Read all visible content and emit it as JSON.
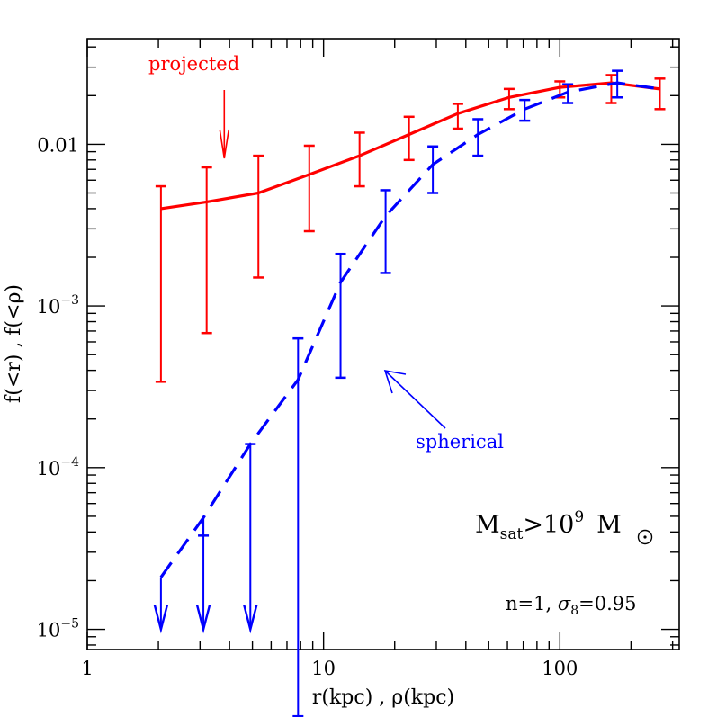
{
  "chart_data": {
    "type": "line",
    "xscale": "log",
    "yscale": "log",
    "xlim": [
      1,
      320
    ],
    "ylim": [
      7.5e-06,
      0.045
    ],
    "xlabel": "r(kpc) , ρ(kpc)",
    "ylabel": "f(<r) , f(<ρ)",
    "x_tick_labels": [
      {
        "value": 1,
        "label": "1"
      },
      {
        "value": 10,
        "label": "10"
      },
      {
        "value": 100,
        "label": "100"
      }
    ],
    "y_tick_labels": [
      {
        "value": 1e-05,
        "base": "10",
        "exp": "−5"
      },
      {
        "value": 0.0001,
        "base": "10",
        "exp": "−4"
      },
      {
        "value": 0.001,
        "base": "10",
        "exp": "−3"
      },
      {
        "value": 0.01,
        "base": "0.01",
        "exp": ""
      }
    ],
    "series": [
      {
        "name": "projected",
        "color": "#ff0000",
        "style": "solid",
        "x": [
          2.05,
          3.2,
          5.3,
          8.7,
          14.2,
          23,
          37,
          61,
          100,
          165,
          265
        ],
        "y": [
          0.004,
          0.0044,
          0.005,
          0.0065,
          0.0085,
          0.0115,
          0.0155,
          0.0195,
          0.0225,
          0.024,
          0.022
        ],
        "err_low": [
          0.00034,
          0.00068,
          0.0015,
          0.0029,
          0.0055,
          0.008,
          0.0125,
          0.0165,
          0.0195,
          0.018,
          0.0165
        ],
        "err_high": [
          0.0055,
          0.0072,
          0.0085,
          0.0098,
          0.0118,
          0.0148,
          0.0178,
          0.022,
          0.0245,
          0.0268,
          0.0255
        ],
        "arrow_to_curve_at_x": 3.8
      },
      {
        "name": "spherical",
        "color": "#0000ff",
        "style": "dashed",
        "x": [
          2.05,
          3.1,
          4.9,
          7.8,
          11.8,
          18.3,
          29,
          45,
          71,
          108,
          175,
          265
        ],
        "y": [
          2.1e-05,
          4.9e-05,
          0.00014,
          0.00035,
          0.0014,
          0.0036,
          0.0075,
          0.0115,
          0.0165,
          0.021,
          0.024,
          0.022
        ],
        "err_low": [
          null,
          null,
          null,
          2.9e-06,
          0.00036,
          0.0016,
          0.005,
          0.0085,
          0.014,
          0.018,
          0.0195,
          null
        ],
        "err_high": [
          null,
          3.8e-05,
          0.00014,
          0.00063,
          0.0021,
          0.0052,
          0.0097,
          0.0143,
          0.0188,
          0.0235,
          0.0285,
          null
        ],
        "upper_limits_x": [
          2.05,
          3.1,
          4.9
        ]
      }
    ],
    "annotations": {
      "projected_label": "projected",
      "spherical_label": "spherical",
      "msat_text": {
        "base": "M",
        "sub": "sat",
        "gt": ">10",
        "exp": "9",
        "msun": "M"
      },
      "params_text": {
        "pre": "n=1, ",
        "sigma": "σ",
        "sub": "8",
        "post": "=0.95"
      }
    },
    "grid": false,
    "legend": "none"
  }
}
